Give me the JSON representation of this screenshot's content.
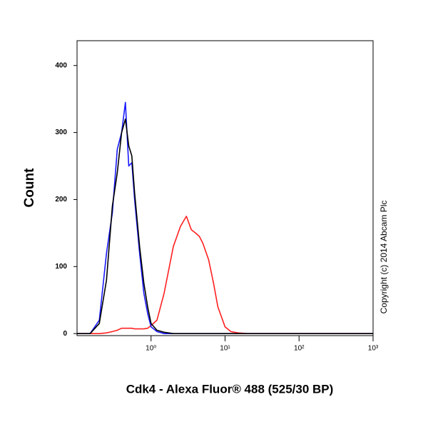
{
  "chart_data": {
    "type": "line",
    "x_label": "Cdk4 - Alexa Fluor® 488 (525/30 BP)",
    "y_label": "Count",
    "annotation": "Copyright (c) 2014 Abcam Plc",
    "log_x": true,
    "x": [
      0.1,
      0.15,
      0.2,
      0.25,
      0.3,
      0.35,
      0.4,
      0.45,
      0.5,
      0.55,
      0.6,
      0.7,
      0.8,
      0.9,
      1,
      1.2,
      1.5,
      2,
      2.5,
      3,
      3.5,
      4,
      4.5,
      5,
      6,
      7,
      8,
      10,
      12,
      15,
      20,
      50,
      100,
      1000
    ],
    "series": [
      {
        "color": "#ff2020",
        "values": [
          0,
          0,
          0,
          1,
          3,
          5,
          8,
          8,
          8,
          8,
          7,
          7,
          7,
          8,
          12,
          20,
          60,
          130,
          160,
          175,
          155,
          150,
          145,
          135,
          110,
          75,
          40,
          10,
          3,
          1,
          0,
          0,
          0,
          0
        ]
      },
      {
        "color": "#1a1aff",
        "values": [
          0,
          0,
          20,
          120,
          180,
          275,
          300,
          345,
          250,
          255,
          200,
          120,
          60,
          30,
          10,
          3,
          0,
          0,
          0,
          0,
          0,
          0,
          0,
          0,
          0,
          0,
          0,
          0,
          0,
          0,
          0,
          0,
          0,
          0
        ]
      },
      {
        "color": "#000000",
        "values": [
          0,
          0,
          15,
          80,
          190,
          240,
          300,
          320,
          280,
          265,
          210,
          130,
          75,
          40,
          15,
          5,
          2,
          0,
          0,
          0,
          0,
          0,
          0,
          0,
          0,
          0,
          0,
          0,
          0,
          0,
          0,
          0,
          0,
          0
        ]
      }
    ],
    "xlim": [
      0.1,
      1000
    ],
    "ylim": [
      -3,
      437
    ],
    "xticks": [
      {
        "value": 1,
        "label": "10⁰"
      },
      {
        "value": 10,
        "label": "10¹"
      },
      {
        "value": 100,
        "label": "10²"
      },
      {
        "value": 1000,
        "label": "10³"
      }
    ],
    "yticks": [
      0,
      100,
      200,
      300,
      400
    ]
  }
}
